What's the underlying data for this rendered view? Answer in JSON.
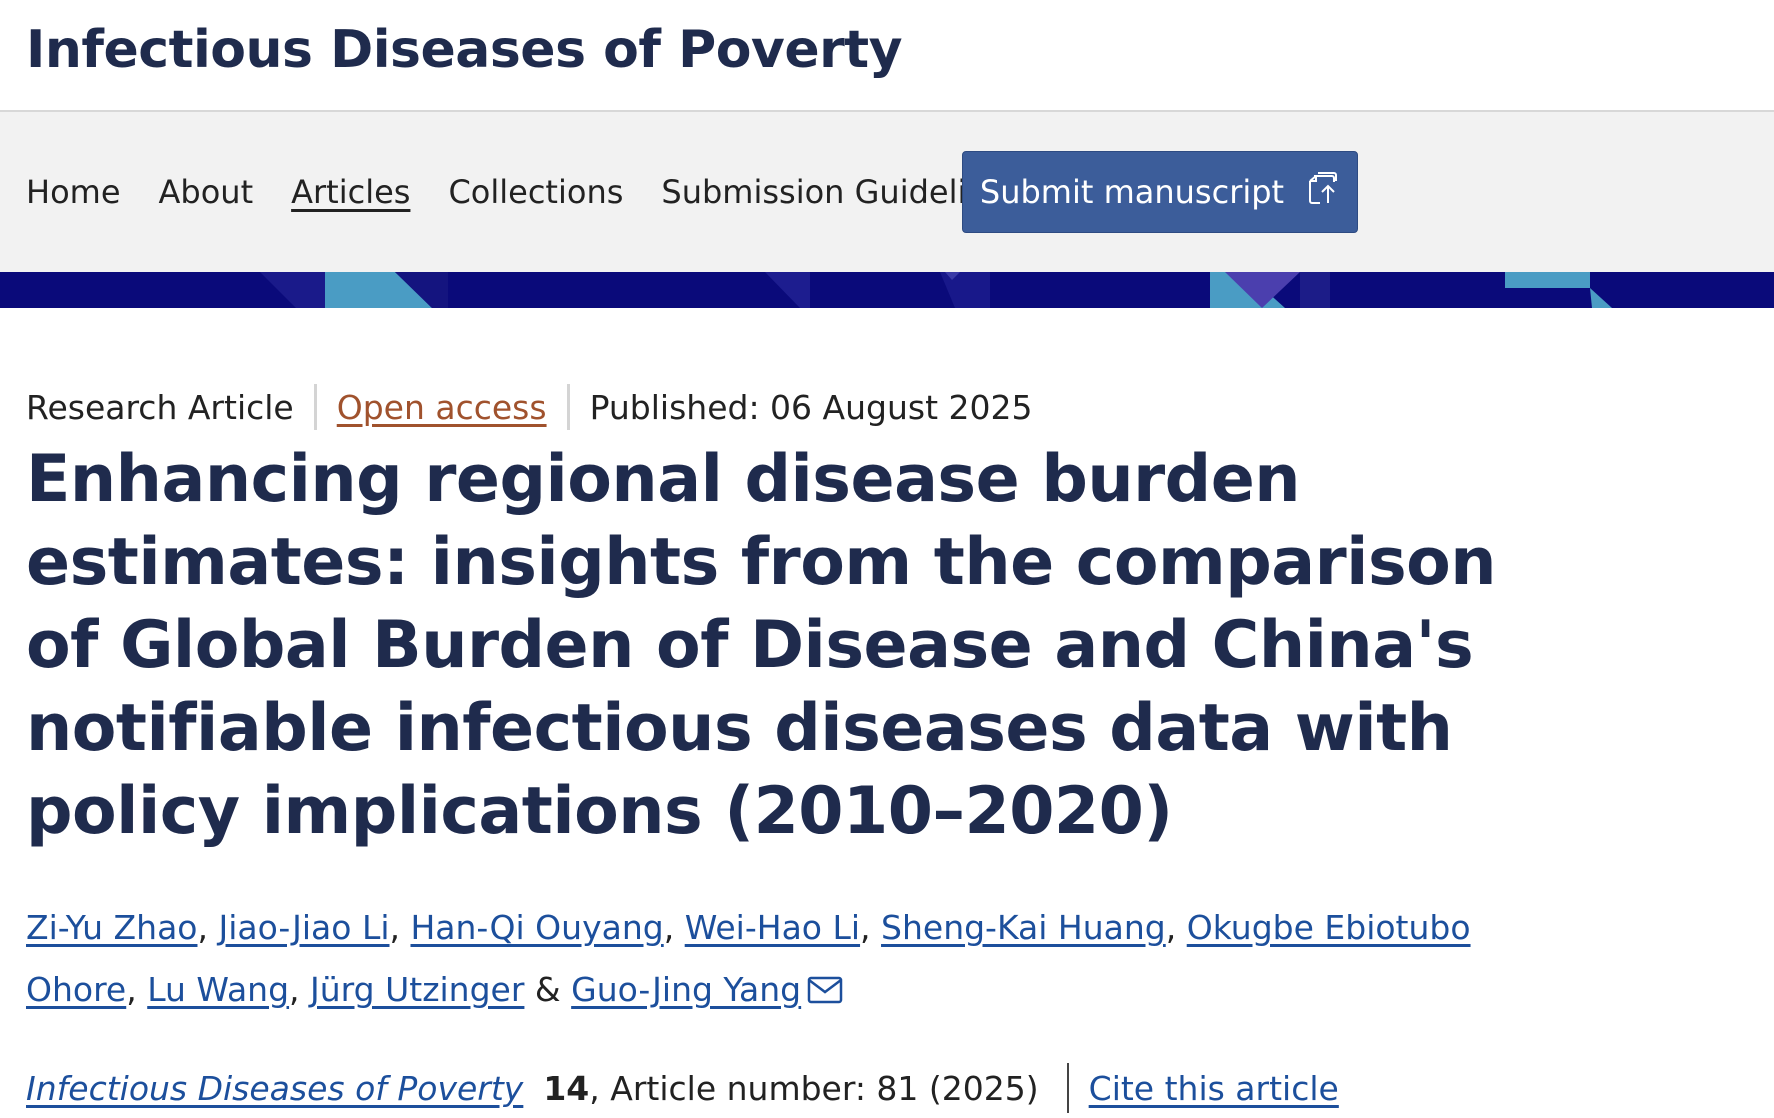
{
  "header": {
    "journal_title": "Infectious Diseases of Poverty"
  },
  "nav": {
    "items": [
      {
        "label": "Home",
        "active": false
      },
      {
        "label": "About",
        "active": false
      },
      {
        "label": "Articles",
        "active": true
      },
      {
        "label": "Collections",
        "active": false
      },
      {
        "label": "Submission Guidelines",
        "active": false
      }
    ],
    "submit_label": "Submit manuscript",
    "submit_icon": "submit-document-icon"
  },
  "colors": {
    "title": "#1f2b4d",
    "link": "#1c4f9c",
    "open_access": "#a0522d",
    "submit_button": "#3c5d9a",
    "banner": "#0a0a7a"
  },
  "article": {
    "type": "Research Article",
    "access": "Open access",
    "published": "Published: 06 August 2025",
    "title": "Enhancing regional disease burden estimates: insights from the comparison of Global Burden of Disease and China's notifiable infectious diseases data with policy implications (2010–2020)",
    "authors": [
      "Zi-Yu Zhao",
      "Jiao-Jiao Li",
      "Han-Qi Ouyang",
      "Wei-Hao Li",
      "Sheng-Kai Huang",
      "Okugbe Ebiotubo Ohore",
      "Lu Wang",
      "Jürg Utzinger",
      "Guo-Jing Yang"
    ],
    "corresponding_icon": "mail-icon",
    "citation": {
      "journal": "Infectious Diseases of Poverty",
      "volume": "14",
      "article_number": ", Article number: 81 (2025)",
      "cite_label": "Cite this article"
    }
  }
}
